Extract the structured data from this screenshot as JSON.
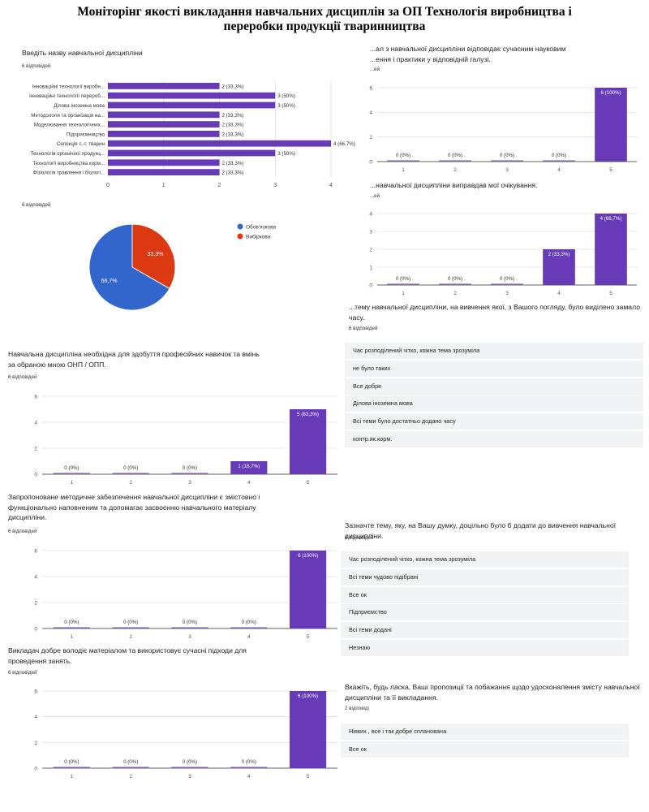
{
  "title_lines": [
    "Моніторінг якості викладання навчальних дисциплін за ОП Технологія виробництва і",
    "переробки продукції тваринництва"
  ],
  "colors": {
    "bar": "#673ab7",
    "pie_required": "#3366cc",
    "pie_elective": "#dc3912",
    "row_bg": "#f1f3f4"
  },
  "hbar": {
    "question": "Введіть назву навчальної дисципліни",
    "count": "6 відповідей",
    "chart_data": {
      "type": "bar",
      "orientation": "horizontal",
      "categories": [
        "Інноваційні технології виробн...",
        "Інноваційні технології перероб...",
        "Ділова іноземна мова",
        "Методологія та організація на...",
        "Моделювання технологічних...",
        "Підприємництво",
        "Селекція с.-г. тварин",
        "Технологія органічної продукц...",
        "Технології виробництва корм...",
        "Фізіологія травлення і біологі..."
      ],
      "values": [
        2,
        3,
        3,
        2,
        2,
        2,
        4,
        3,
        2,
        2
      ],
      "data_labels": [
        "2 (33,3%)",
        "3 (50%)",
        "3 (50%)",
        "2 (33,3%)",
        "2 (33,3%)",
        "2 (33,3%)",
        "4 (66,7%)",
        "3 (50%)",
        "2 (33,3%)",
        "2 (33,3%)"
      ],
      "xticks": [
        "0",
        "1",
        "2",
        "3",
        "4"
      ],
      "xlim": [
        0,
        4
      ],
      "grid": true
    }
  },
  "pie": {
    "count": "6 відповідей",
    "chart_data": {
      "type": "pie",
      "labels": [
        "Обов'язкова",
        "Вибіркова"
      ],
      "values": [
        66.7,
        33.3
      ],
      "data_labels": [
        "66,7%",
        "33,3%"
      ],
      "colors": [
        "#3366cc",
        "#dc3912"
      ],
      "legend": "right"
    }
  },
  "vbars": [
    {
      "id": "modern",
      "question_lines": [
        "...ал з навчальної дисципліни відповідає сучасним науковим",
        "...ення і практики у відповідній галузі."
      ],
      "count": "...ей",
      "chart_data": {
        "type": "bar",
        "categories": [
          "1",
          "2",
          "3",
          "4",
          "5"
        ],
        "values": [
          0,
          0,
          0,
          0,
          6
        ],
        "data_labels": [
          "0 (0%)",
          "0 (0%)",
          "0 (0%)",
          "0 (0%)",
          "6 (100%)"
        ],
        "yticks": [
          "0",
          "2",
          "4",
          "6"
        ],
        "ylim": [
          0,
          6
        ]
      }
    },
    {
      "id": "expect",
      "question_lines": [
        "...навчальної дисципліни виправдав мої очікування."
      ],
      "count": "...ей",
      "chart_data": {
        "type": "bar",
        "categories": [
          "1",
          "2",
          "3",
          "4",
          "5"
        ],
        "values": [
          0,
          0,
          0,
          2,
          4
        ],
        "data_labels": [
          "0 (0%)",
          "0 (0%)",
          "0 (0%)",
          "2 (33,3%)",
          "4 (66,7%)"
        ],
        "yticks": [
          "0",
          "1",
          "2",
          "3",
          "4"
        ],
        "ylim": [
          0,
          4
        ]
      }
    },
    {
      "id": "skills",
      "question_lines": [
        "Навчальна дисципліна необхідна для здобуття професійних навичок та вмінь",
        "за обраною мною ОНП / ОПП."
      ],
      "count": "6 відповідей",
      "chart_data": {
        "type": "bar",
        "categories": [
          "1",
          "2",
          "3",
          "4",
          "5"
        ],
        "values": [
          0,
          0,
          0,
          1,
          5
        ],
        "data_labels": [
          "0 (0%)",
          "0 (0%)",
          "0 (0%)",
          "1 (16,7%)",
          "5 (83,3%)"
        ],
        "yticks": [
          "0",
          "2",
          "4",
          "6"
        ],
        "ylim": [
          0,
          6
        ]
      }
    },
    {
      "id": "methodical",
      "question_lines": [
        "Запропоноване методичне забезпечення навчальної дисципліни є змістовно і",
        "функціонально наповненим та допомагає засвоєнню навчального матеріалу",
        "дисципліни."
      ],
      "count": "6 відповідей",
      "chart_data": {
        "type": "bar",
        "categories": [
          "1",
          "2",
          "3",
          "4",
          "5"
        ],
        "values": [
          0,
          0,
          0,
          0,
          6
        ],
        "data_labels": [
          "0 (0%)",
          "0 (0%)",
          "0 (0%)",
          "0 (0%)",
          "6 (100%)"
        ],
        "yticks": [
          "0",
          "2",
          "4",
          "6"
        ],
        "ylim": [
          0,
          6
        ]
      }
    },
    {
      "id": "teacher",
      "question_lines": [
        "Викладач добре володіє матеріалом та використовує сучасні підходи для",
        "проведення занять."
      ],
      "count": "6 відповідей",
      "chart_data": {
        "type": "bar",
        "categories": [
          "1",
          "2",
          "3",
          "4",
          "5"
        ],
        "values": [
          0,
          0,
          0,
          0,
          6
        ],
        "data_labels": [
          "0 (0%)",
          "0 (0%)",
          "0 (0%)",
          "0 (0%)",
          "6 (100%)"
        ],
        "yticks": [
          "0",
          "2",
          "4",
          "6"
        ],
        "ylim": [
          0,
          6
        ]
      }
    }
  ],
  "lists": [
    {
      "id": "little_time",
      "question_lines": [
        "...тему навчальної дисципліни, на вивчення якої, з Вашого погляду, було виділено замало",
        "часу."
      ],
      "count": "6 відповідей",
      "items": [
        "Час розподілений чітко, кожна тема зрозуміла",
        "не було таких",
        "Все добре",
        "Ділова іноземна мова",
        "Всі теми було достатньо додано часу",
        "контр.як.корм."
      ]
    },
    {
      "id": "add_topic",
      "question_lines": [
        "Зазначте тему, яку, на Вашу думку, доцільно було б додати до вивчення навчальної дисципліни."
      ],
      "count": "6 відповідей",
      "items": [
        "Час розподілений чітко, кожна тема зрозуміла",
        "Всі теми чудово підібрані",
        "Все ок",
        "Підприємство",
        "Всі теми додані",
        "Незнаю"
      ]
    },
    {
      "id": "suggestions",
      "question_lines": [
        "Вкажіть, будь ласка, Ваші пропозиції та побажання щодо удосконалення змісту навчальної",
        "дисципліни та її викладання."
      ],
      "count": "2 відповіді",
      "items": [
        "Ніяких , все і так добре спланована",
        "Все ок"
      ]
    }
  ]
}
